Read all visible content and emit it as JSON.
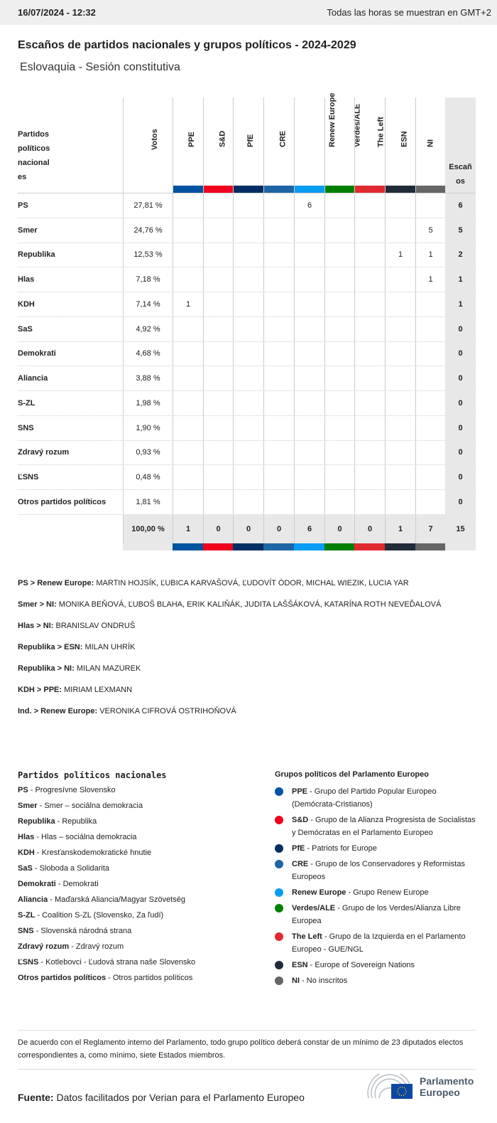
{
  "header": {
    "datetime": "16/07/2024 - 12:32",
    "timezone_note": "Todas las horas se muestran en GMT+2"
  },
  "title": "Escaños de partidos nacionales y grupos políticos - 2024-2029",
  "subtitle": "Eslovaquia - Sesión constitutiva",
  "table": {
    "col_party": "Partidos políticos nacional es",
    "col_votes": "Votos",
    "col_seats": "Escaños",
    "groups": [
      {
        "name": "PPE",
        "color": "#0053a0"
      },
      {
        "name": "S&D",
        "color": "#f0001c"
      },
      {
        "name": "PfE",
        "color": "#002e62"
      },
      {
        "name": "CRE",
        "color": "#1e65a6"
      },
      {
        "name": "Renew Europe",
        "color": "#0a9cf5"
      },
      {
        "name": "Verdes/ALE",
        "color": "#008000"
      },
      {
        "name": "The Left",
        "color": "#e02a2f"
      },
      {
        "name": "ESN",
        "color": "#202b3a"
      },
      {
        "name": "NI",
        "color": "#666666"
      }
    ],
    "rows": [
      {
        "party": "PS",
        "votes": "27,81 %",
        "seats": [
          "",
          "",
          "",
          "",
          "6",
          "",
          "",
          "",
          ""
        ],
        "total": "6"
      },
      {
        "party": "Smer",
        "votes": "24,76 %",
        "seats": [
          "",
          "",
          "",
          "",
          "",
          "",
          "",
          "",
          "5"
        ],
        "total": "5"
      },
      {
        "party": "Republika",
        "votes": "12,53 %",
        "seats": [
          "",
          "",
          "",
          "",
          "",
          "",
          "",
          "1",
          "1"
        ],
        "total": "2"
      },
      {
        "party": "Hlas",
        "votes": "7,18 %",
        "seats": [
          "",
          "",
          "",
          "",
          "",
          "",
          "",
          "",
          "1"
        ],
        "total": "1"
      },
      {
        "party": "KDH",
        "votes": "7,14 %",
        "seats": [
          "1",
          "",
          "",
          "",
          "",
          "",
          "",
          "",
          ""
        ],
        "total": "1"
      },
      {
        "party": "SaS",
        "votes": "4,92 %",
        "seats": [
          "",
          "",
          "",
          "",
          "",
          "",
          "",
          "",
          ""
        ],
        "total": "0"
      },
      {
        "party": "Demokrati",
        "votes": "4,68 %",
        "seats": [
          "",
          "",
          "",
          "",
          "",
          "",
          "",
          "",
          ""
        ],
        "total": "0"
      },
      {
        "party": "Aliancia",
        "votes": "3,88 %",
        "seats": [
          "",
          "",
          "",
          "",
          "",
          "",
          "",
          "",
          ""
        ],
        "total": "0"
      },
      {
        "party": "S-ZL",
        "votes": "1,98 %",
        "seats": [
          "",
          "",
          "",
          "",
          "",
          "",
          "",
          "",
          ""
        ],
        "total": "0"
      },
      {
        "party": "SNS",
        "votes": "1,90 %",
        "seats": [
          "",
          "",
          "",
          "",
          "",
          "",
          "",
          "",
          ""
        ],
        "total": "0"
      },
      {
        "party": "Zdravý rozum",
        "votes": "0,93 %",
        "seats": [
          "",
          "",
          "",
          "",
          "",
          "",
          "",
          "",
          ""
        ],
        "total": "0"
      },
      {
        "party": "ĽSNS",
        "votes": "0,48 %",
        "seats": [
          "",
          "",
          "",
          "",
          "",
          "",
          "",
          "",
          ""
        ],
        "total": "0"
      },
      {
        "party": "Otros partidos políticos",
        "votes": "1,81 %",
        "seats": [
          "",
          "",
          "",
          "",
          "",
          "",
          "",
          "",
          ""
        ],
        "total": "0"
      }
    ],
    "totals": {
      "votes": "100,00 %",
      "seats": [
        "1",
        "0",
        "0",
        "0",
        "6",
        "0",
        "0",
        "1",
        "7"
      ],
      "total": "15"
    }
  },
  "members": [
    {
      "label": "PS > Renew Europe:",
      "names": "MARTIN HOJSÍK, ĽUBICA KARVAŠOVÁ, ĽUDOVÍT ÓDOR, MICHAL WIEZIK, LUCIA YAR"
    },
    {
      "label": "Smer > NI:",
      "names": "MONIKA BEŇOVÁ, ĽUBOŠ BLAHA, ERIK KALIŇÁK, JUDITA LAŠŠÁKOVÁ, KATARÍNA ROTH NEVEĎALOVÁ"
    },
    {
      "label": "Hlas > NI:",
      "names": "BRANISLAV ONDRUŠ"
    },
    {
      "label": "Republika > ESN:",
      "names": "MILAN UHRÍK"
    },
    {
      "label": "Republika > NI:",
      "names": "MILAN MAZUREK"
    },
    {
      "label": "KDH > PPE:",
      "names": "MIRIAM LEXMANN"
    },
    {
      "label": "Ind. > Renew Europe:",
      "names": "VERONIKA CIFROVÁ OSTRIHOŇOVÁ"
    }
  ],
  "legend_parties": {
    "title": "Partidos políticos nacionales",
    "items": [
      {
        "abbr": "PS",
        "name": "Progresívne Slovensko"
      },
      {
        "abbr": "Smer",
        "name": "Smer – sociálna demokracia"
      },
      {
        "abbr": "Republika",
        "name": "Republika"
      },
      {
        "abbr": "Hlas",
        "name": "Hlas – sociálna demokracia"
      },
      {
        "abbr": "KDH",
        "name": "Kresťanskodemokratické hnutie"
      },
      {
        "abbr": "SaS",
        "name": "Sloboda a Solidarita"
      },
      {
        "abbr": "Demokrati",
        "name": "Demokrati"
      },
      {
        "abbr": "Aliancia",
        "name": "Maďarská Aliancia/Magyar Szövetség"
      },
      {
        "abbr": "S-ZL",
        "name": "Coalition S-ZL (Slovensko, Za ľudí)"
      },
      {
        "abbr": "SNS",
        "name": "Slovenská národná strana"
      },
      {
        "abbr": "Zdravý rozum",
        "name": "Zdravý rozum"
      },
      {
        "abbr": "ĽSNS",
        "name": "Kotlebovci - Ľudová strana naše Slovensko"
      },
      {
        "abbr": "Otros partidos políticos",
        "name": "Otros partidos políticos"
      }
    ]
  },
  "legend_groups": {
    "title": "Grupos políticos del Parlamento Europeo",
    "items": [
      {
        "abbr": "PPE",
        "name": "Grupo del Partido Popular Europeo (Demócrata-Cristianos)"
      },
      {
        "abbr": "S&D",
        "name": "Grupo de la Alianza Progresista de Socialistas y Demócratas en el Parlamento Europeo"
      },
      {
        "abbr": "PfE",
        "name": "Patriots for Europe"
      },
      {
        "abbr": "CRE",
        "name": "Grupo de los Conservadores y Reformistas Europeos"
      },
      {
        "abbr": "Renew Europe",
        "name": "Grupo Renew Europe"
      },
      {
        "abbr": "Verdes/ALE",
        "name": "Grupo de los Verdes/Alianza Libre Europea"
      },
      {
        "abbr": "The Left",
        "name": "Grupo de la Izquierda en el Parlamento Europeo - GUE/NGL"
      },
      {
        "abbr": "ESN",
        "name": "Europe of Sovereign Nations"
      },
      {
        "abbr": "NI",
        "name": "No inscritos"
      }
    ]
  },
  "note": "De acuerdo con el Reglamento interno del Parlamento, todo grupo político deberá constar de un mínimo de 23 diputados electos correspondientes a, como mínimo, siete Estados miembros.",
  "source": {
    "label": "Fuente:",
    "text": "Datos facilitados por Verian para el Parlamento Europeo"
  },
  "logo": {
    "line1": "Parlamento",
    "line2": "Europeo"
  }
}
